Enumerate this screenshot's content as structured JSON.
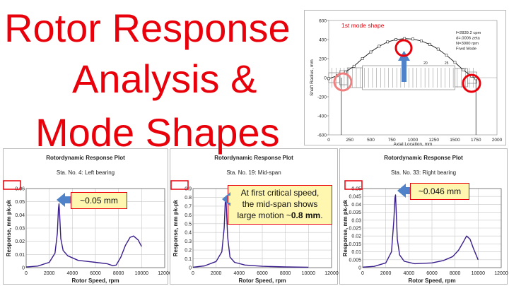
{
  "title_lines": [
    "Rotor Response",
    "Analysis &",
    "Mode Shapes"
  ],
  "callouts": {
    "left": "~0.05 mm",
    "mid_line1": "At first critical speed,",
    "mid_line2": "the mid-span shows",
    "mid_line3": "large motion ~",
    "mid_bold": "0.8 mm",
    "mid_end": ".",
    "right": "~0.046 mm"
  },
  "chart_data": [
    {
      "type": "line",
      "title": "1st mode shape",
      "xlabel": "Axial Location, mm",
      "ylabel": "Shaft Radius, mm",
      "xlim": [
        0,
        2000
      ],
      "ylim": [
        -600,
        600
      ],
      "xticks": [
        0,
        250,
        500,
        750,
        1000,
        1250,
        1500,
        1750,
        2000
      ],
      "yticks": [
        -600,
        -400,
        -200,
        0,
        200,
        400,
        600
      ],
      "info": [
        "f=2839.2 cpm",
        "d=.0006 zeta",
        "N=3000 rpm",
        "Frwd Mode"
      ],
      "station_labels": [
        "15",
        "20",
        "25"
      ],
      "x": [
        0,
        100,
        200,
        300,
        400,
        500,
        600,
        700,
        800,
        900,
        1000,
        1100,
        1200,
        1300,
        1400,
        1500,
        1600,
        1700,
        1750
      ],
      "y": [
        -10,
        20,
        60,
        120,
        200,
        270,
        330,
        375,
        400,
        410,
        405,
        385,
        350,
        300,
        235,
        160,
        80,
        15,
        -10
      ]
    },
    {
      "type": "line",
      "title": "Rotordynamic Response Plot",
      "subtitle": "Sta. No. 4: Left bearing",
      "xlabel": "Rotor Speed, rpm",
      "ylabel": "Response, mm pk-pk",
      "xlim": [
        0,
        12000
      ],
      "ylim": [
        0,
        0.06
      ],
      "xticks": [
        0,
        2000,
        4000,
        6000,
        8000,
        10000,
        12000
      ],
      "yticks": [
        0,
        0.01,
        0.02,
        0.03,
        0.04,
        0.05,
        0.06
      ],
      "x": [
        0,
        1000,
        2000,
        2500,
        2700,
        2800,
        2850,
        2900,
        3000,
        3200,
        3600,
        4500,
        6000,
        7000,
        7500,
        7800,
        8200,
        8600,
        9000,
        9300,
        9700,
        10000
      ],
      "y": [
        0.0005,
        0.0012,
        0.004,
        0.011,
        0.026,
        0.045,
        0.0485,
        0.04,
        0.022,
        0.013,
        0.009,
        0.0055,
        0.004,
        0.003,
        0.0015,
        0.002,
        0.008,
        0.017,
        0.023,
        0.024,
        0.021,
        0.016
      ]
    },
    {
      "type": "line",
      "title": "Rotordynamic Response Plot",
      "subtitle": "Sta. No. 19: Mid-span",
      "xlabel": "Rotor Speed, rpm",
      "ylabel": "Response, mm pk-pk",
      "xlim": [
        0,
        12000
      ],
      "ylim": [
        0,
        0.9
      ],
      "xticks": [
        0,
        2000,
        4000,
        6000,
        8000,
        10000,
        12000
      ],
      "yticks": [
        0,
        0.1,
        0.2,
        0.3,
        0.4,
        0.5,
        0.6,
        0.7,
        0.8,
        0.9
      ],
      "x": [
        0,
        1000,
        2000,
        2500,
        2700,
        2800,
        2850,
        2900,
        3000,
        3200,
        3600,
        4500,
        6000,
        8000,
        10000
      ],
      "y": [
        0.005,
        0.02,
        0.07,
        0.18,
        0.45,
        0.76,
        0.8,
        0.65,
        0.35,
        0.12,
        0.06,
        0.03,
        0.015,
        0.008,
        0.005
      ]
    },
    {
      "type": "line",
      "title": "Rotordynamic Response Plot",
      "subtitle": "Sta. No. 33: Right bearing",
      "xlabel": "Rotor Speed, rpm",
      "ylabel": "Response, mm pk-pk",
      "xlim": [
        0,
        12000
      ],
      "ylim": [
        0,
        0.05
      ],
      "xticks": [
        0,
        2000,
        4000,
        6000,
        8000,
        10000,
        12000
      ],
      "yticks": [
        0,
        0.005,
        0.01,
        0.015,
        0.02,
        0.025,
        0.03,
        0.035,
        0.04,
        0.045,
        0.05
      ],
      "x": [
        0,
        1000,
        2000,
        2500,
        2700,
        2800,
        2850,
        2900,
        3000,
        3200,
        3600,
        4500,
        6000,
        7000,
        7800,
        8300,
        8700,
        9000,
        9300,
        9600,
        10000
      ],
      "y": [
        0.0003,
        0.0008,
        0.003,
        0.01,
        0.03,
        0.044,
        0.046,
        0.036,
        0.018,
        0.008,
        0.004,
        0.0025,
        0.003,
        0.0045,
        0.007,
        0.011,
        0.016,
        0.02,
        0.018,
        0.012,
        0.005
      ]
    }
  ]
}
